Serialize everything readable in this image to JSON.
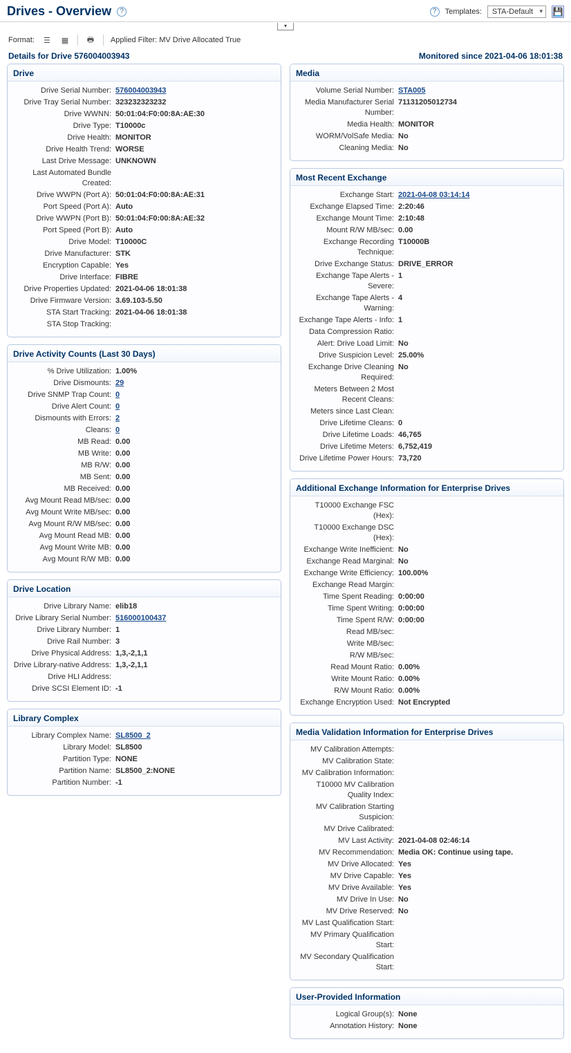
{
  "header": {
    "title": "Drives - Overview",
    "templates_label": "Templates:",
    "template_selected": "STA-Default"
  },
  "toolbar": {
    "format_label": "Format:",
    "applied_filter": "Applied Filter: MV Drive Allocated True"
  },
  "details_bar": {
    "left": "Details for Drive 576004003943",
    "right": "Monitored since 2021-04-06 18:01:38"
  },
  "panels": {
    "drive": {
      "title": "Drive",
      "rows": [
        {
          "k": "Drive Serial Number:",
          "v": "576004003943",
          "link": true
        },
        {
          "k": "Drive Tray Serial Number:",
          "v": "323232323232"
        },
        {
          "k": "Drive WWNN:",
          "v": "50:01:04:F0:00:8A:AE:30"
        },
        {
          "k": "Drive Type:",
          "v": "T10000c"
        },
        {
          "k": "Drive Health:",
          "v": "MONITOR"
        },
        {
          "k": "Drive Health Trend:",
          "v": "WORSE"
        },
        {
          "k": "Last Drive Message:",
          "v": "UNKNOWN"
        },
        {
          "k": "Last Automated Bundle Created:",
          "v": ""
        },
        {
          "k": "Drive WWPN (Port A):",
          "v": "50:01:04:F0:00:8A:AE:31"
        },
        {
          "k": "Port Speed (Port A):",
          "v": "Auto"
        },
        {
          "k": "Drive WWPN (Port B):",
          "v": "50:01:04:F0:00:8A:AE:32"
        },
        {
          "k": "Port Speed (Port B):",
          "v": "Auto"
        },
        {
          "k": "Drive Model:",
          "v": "T10000C"
        },
        {
          "k": "Drive Manufacturer:",
          "v": "STK"
        },
        {
          "k": "Encryption Capable:",
          "v": "Yes"
        },
        {
          "k": "Drive Interface:",
          "v": "FIBRE"
        },
        {
          "k": "Drive Properties Updated:",
          "v": "2021-04-06 18:01:38"
        },
        {
          "k": "Drive Firmware Version:",
          "v": "3.69.103-5.50"
        },
        {
          "k": "STA Start Tracking:",
          "v": "2021-04-06 18:01:38"
        },
        {
          "k": "STA Stop Tracking:",
          "v": ""
        }
      ]
    },
    "activity": {
      "title": "Drive Activity Counts (Last 30 Days)",
      "rows": [
        {
          "k": "% Drive Utilization:",
          "v": "1.00%"
        },
        {
          "k": "Drive Dismounts:",
          "v": "29",
          "link": true
        },
        {
          "k": "Drive SNMP Trap Count:",
          "v": "0",
          "link": true
        },
        {
          "k": "Drive Alert Count:",
          "v": "0",
          "link": true
        },
        {
          "k": "Dismounts with Errors:",
          "v": "2",
          "link": true
        },
        {
          "k": "Cleans:",
          "v": "0",
          "link": true
        },
        {
          "k": "MB Read:",
          "v": "0.00"
        },
        {
          "k": "MB Write:",
          "v": "0.00"
        },
        {
          "k": "MB R/W:",
          "v": "0.00"
        },
        {
          "k": "MB Sent:",
          "v": "0.00"
        },
        {
          "k": "MB Received:",
          "v": "0.00"
        },
        {
          "k": "Avg Mount Read MB/sec:",
          "v": "0.00"
        },
        {
          "k": "Avg Mount Write MB/sec:",
          "v": "0.00"
        },
        {
          "k": "Avg Mount R/W MB/sec:",
          "v": "0.00"
        },
        {
          "k": "Avg Mount Read MB:",
          "v": "0.00"
        },
        {
          "k": "Avg Mount Write MB:",
          "v": "0.00"
        },
        {
          "k": "Avg Mount R/W MB:",
          "v": "0.00"
        }
      ]
    },
    "location": {
      "title": "Drive Location",
      "rows": [
        {
          "k": "Drive Library Name:",
          "v": "elib18"
        },
        {
          "k": "Drive Library Serial Number:",
          "v": "516000100437",
          "link": true
        },
        {
          "k": "Drive Library Number:",
          "v": "1"
        },
        {
          "k": "Drive Rail Number:",
          "v": "3"
        },
        {
          "k": "Drive Physical Address:",
          "v": "1,3,-2,1,1"
        },
        {
          "k": "Drive Library-native Address:",
          "v": "1,3,-2,1,1"
        },
        {
          "k": "Drive HLI Address:",
          "v": ""
        },
        {
          "k": "Drive SCSI Element ID:",
          "v": "-1"
        }
      ]
    },
    "libcomplex": {
      "title": "Library Complex",
      "rows": [
        {
          "k": "Library Complex Name:",
          "v": "SL8500_2",
          "link": true
        },
        {
          "k": "Library Model:",
          "v": "SL8500"
        },
        {
          "k": "Partition Type:",
          "v": "NONE"
        },
        {
          "k": "Partition Name:",
          "v": "SL8500_2:NONE"
        },
        {
          "k": "Partition Number:",
          "v": "-1"
        }
      ]
    },
    "media": {
      "title": "Media",
      "rows": [
        {
          "k": "Volume Serial Number:",
          "v": "STA005",
          "link": true
        },
        {
          "k": "Media Manufacturer Serial Number:",
          "v": "71131205012734"
        },
        {
          "k": "Media Health:",
          "v": "MONITOR"
        },
        {
          "k": "WORM/VolSafe Media:",
          "v": "No"
        },
        {
          "k": "Cleaning Media:",
          "v": "No"
        }
      ]
    },
    "exchange": {
      "title": "Most Recent Exchange",
      "rows": [
        {
          "k": "Exchange Start:",
          "v": "2021-04-08 03:14:14",
          "link": true
        },
        {
          "k": "Exchange Elapsed Time:",
          "v": "2:20:46"
        },
        {
          "k": "Exchange Mount Time:",
          "v": "2:10:48"
        },
        {
          "k": "Mount R/W MB/sec:",
          "v": "0.00"
        },
        {
          "k": "Exchange Recording Technique:",
          "v": "T10000B"
        },
        {
          "k": "Drive Exchange Status:",
          "v": "DRIVE_ERROR"
        },
        {
          "k": "Exchange Tape Alerts - Severe:",
          "v": "1"
        },
        {
          "k": "Exchange Tape Alerts - Warning:",
          "v": "4"
        },
        {
          "k": "Exchange Tape Alerts - Info:",
          "v": "1"
        },
        {
          "k": "Data Compression Ratio:",
          "v": ""
        },
        {
          "k": "Alert: Drive Load Limit:",
          "v": "No"
        },
        {
          "k": "Drive Suspicion Level:",
          "v": "25.00%"
        },
        {
          "k": "Exchange Drive Cleaning Required:",
          "v": "No"
        },
        {
          "k": "Meters Between 2 Most Recent Cleans:",
          "v": ""
        },
        {
          "k": "Meters since Last Clean:",
          "v": ""
        },
        {
          "k": "Drive Lifetime Cleans:",
          "v": "0"
        },
        {
          "k": "Drive Lifetime Loads:",
          "v": "46,765"
        },
        {
          "k": "Drive Lifetime Meters:",
          "v": "6,752,419"
        },
        {
          "k": "Drive Lifetime Power Hours:",
          "v": "73,720"
        }
      ]
    },
    "addexch": {
      "title": "Additional Exchange Information for Enterprise Drives",
      "rows": [
        {
          "k": "T10000 Exchange FSC (Hex):",
          "v": ""
        },
        {
          "k": "T10000 Exchange DSC (Hex):",
          "v": ""
        },
        {
          "k": "Exchange Write Inefficient:",
          "v": "No"
        },
        {
          "k": "Exchange Read Marginal:",
          "v": "No"
        },
        {
          "k": "Exchange Write Efficiency:",
          "v": "100.00%"
        },
        {
          "k": "Exchange Read Margin:",
          "v": ""
        },
        {
          "k": "Time Spent Reading:",
          "v": "0:00:00"
        },
        {
          "k": "Time Spent Writing:",
          "v": "0:00:00"
        },
        {
          "k": "Time Spent R/W:",
          "v": "0:00:00"
        },
        {
          "k": "Read MB/sec:",
          "v": ""
        },
        {
          "k": "Write MB/sec:",
          "v": ""
        },
        {
          "k": "R/W MB/sec:",
          "v": ""
        },
        {
          "k": "Read Mount Ratio:",
          "v": "0.00%"
        },
        {
          "k": "Write Mount Ratio:",
          "v": "0.00%"
        },
        {
          "k": "R/W Mount Ratio:",
          "v": "0.00%"
        },
        {
          "k": "Exchange Encryption Used:",
          "v": "Not Encrypted"
        }
      ]
    },
    "mvinfo": {
      "title": "Media Validation Information for Enterprise Drives",
      "rows": [
        {
          "k": "MV Calibration Attempts:",
          "v": ""
        },
        {
          "k": "MV Calibration State:",
          "v": ""
        },
        {
          "k": "MV Calibration Information:",
          "v": ""
        },
        {
          "k": "T10000 MV Calibration Quality Index:",
          "v": ""
        },
        {
          "k": "MV Calibration Starting Suspicion:",
          "v": ""
        },
        {
          "k": "MV Drive Calibrated:",
          "v": ""
        },
        {
          "k": "MV Last Activity:",
          "v": "2021-04-08 02:46:14"
        },
        {
          "k": "MV Recommendation:",
          "v": "Media OK: Continue using tape."
        },
        {
          "k": "MV Drive Allocated:",
          "v": "Yes"
        },
        {
          "k": "MV Drive Capable:",
          "v": "Yes"
        },
        {
          "k": "MV Drive Available:",
          "v": "Yes"
        },
        {
          "k": "MV Drive In Use:",
          "v": "No"
        },
        {
          "k": "MV Drive Reserved:",
          "v": "No"
        },
        {
          "k": "MV Last Qualification Start:",
          "v": ""
        },
        {
          "k": "MV Primary Qualification Start:",
          "v": ""
        },
        {
          "k": "MV Secondary Qualification Start:",
          "v": ""
        }
      ]
    },
    "userinfo": {
      "title": "User-Provided Information",
      "rows": [
        {
          "k": "Logical Group(s):",
          "v": "None"
        },
        {
          "k": "Annotation History:",
          "v": "None"
        }
      ]
    }
  }
}
